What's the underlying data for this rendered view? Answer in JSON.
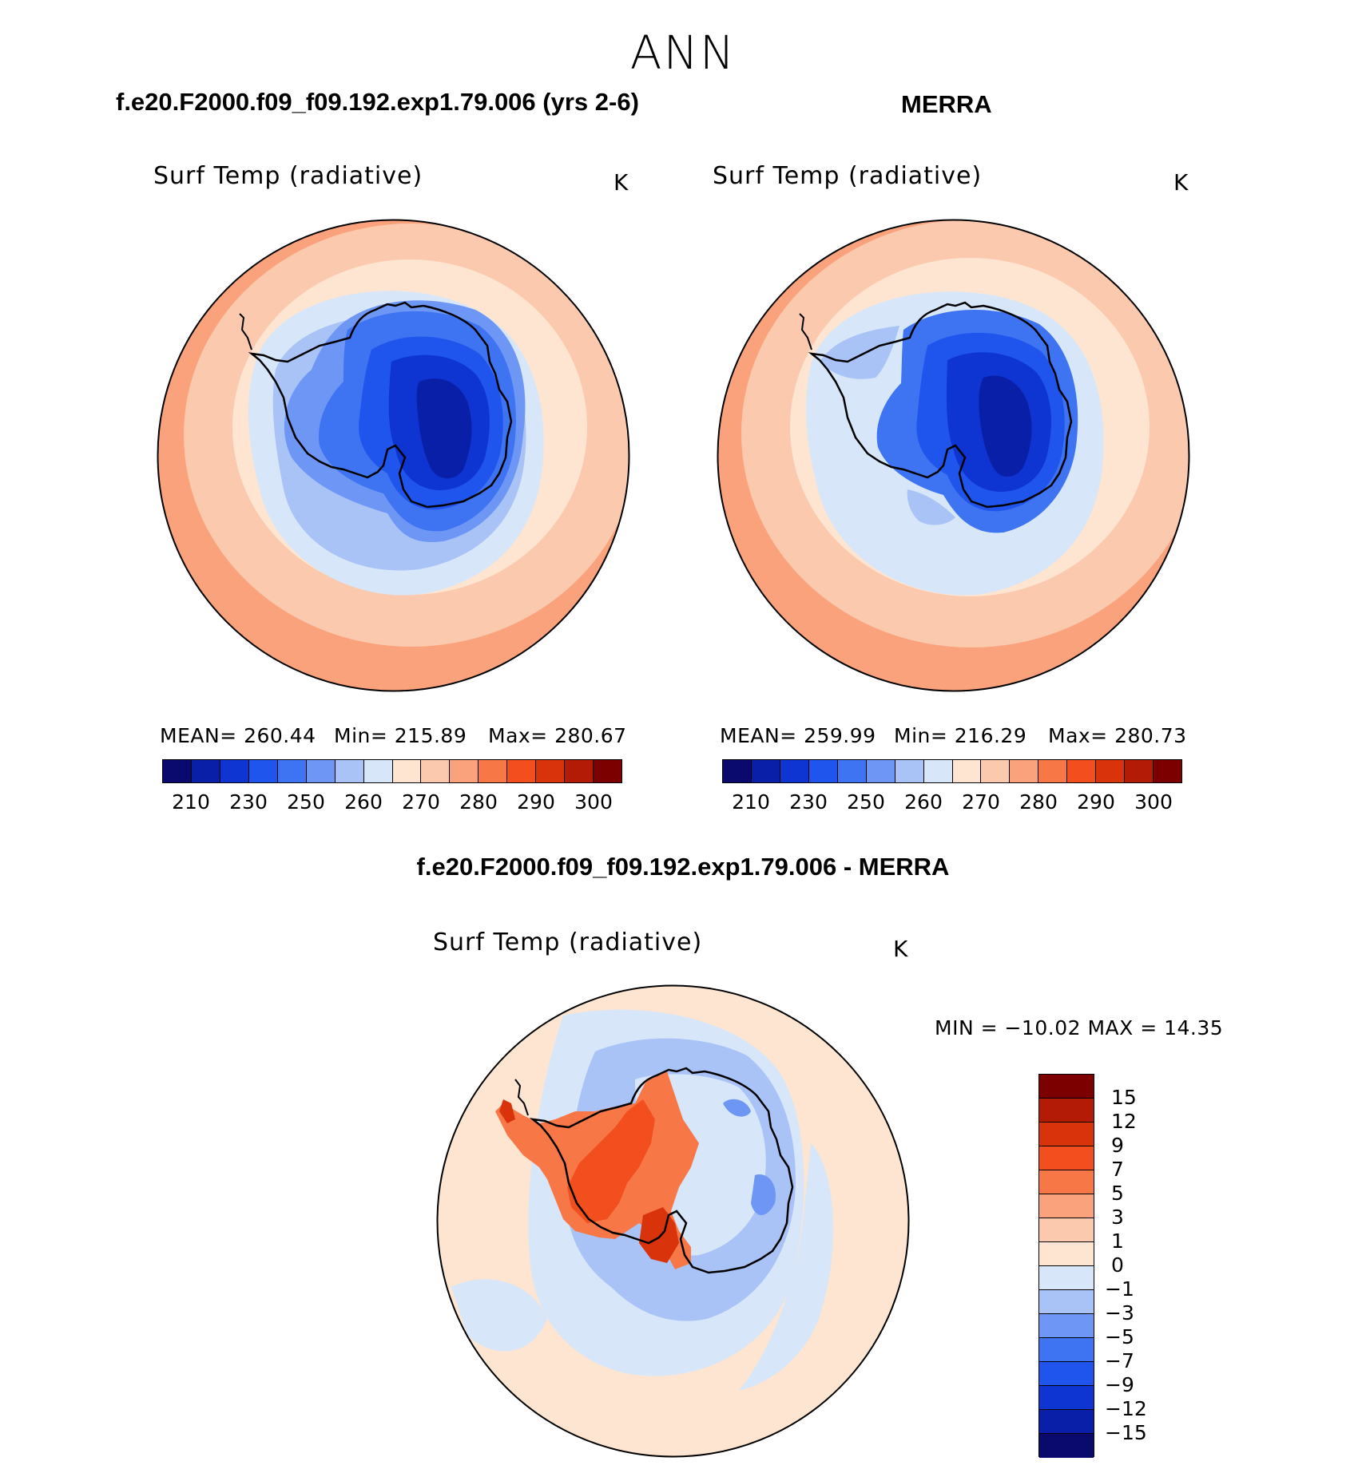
{
  "season": "ANN",
  "panel1": {
    "case_title": "f.e20.F2000.f09_f09.192.exp1.79.006 (yrs 2-6)",
    "variable": "Surf Temp (radiative)",
    "units": "K",
    "stats": {
      "mean": "MEAN= 260.44",
      "min": "Min= 215.89",
      "max": "Max= 280.67"
    }
  },
  "panel2": {
    "case_title": "MERRA",
    "variable": "Surf Temp (radiative)",
    "units": "K",
    "stats": {
      "mean": "MEAN= 259.99",
      "min": "Min= 216.29",
      "max": "Max= 280.73"
    }
  },
  "panel3": {
    "case_title": "f.e20.F2000.f09_f09.192.exp1.79.006 - MERRA",
    "variable": "Surf Temp (radiative)",
    "units": "K",
    "stats": {
      "minmax": "MIN = −10.02 MAX =   14.35"
    }
  },
  "abs_colorbar": {
    "colors": [
      "#0a0a6e",
      "#0a1fa8",
      "#0e34d2",
      "#1f55ed",
      "#3e73f2",
      "#6d96f5",
      "#a9c3f7",
      "#d7e6f9",
      "#fde5d2",
      "#fbc9ae",
      "#f9a27c",
      "#f77746",
      "#f24e1e",
      "#d9330c",
      "#b31b06",
      "#7d0000"
    ],
    "ticks": [
      "210",
      "230",
      "250",
      "260",
      "270",
      "280",
      "290",
      "300"
    ]
  },
  "diff_colorbar": {
    "colors": [
      "#7d0000",
      "#b31b06",
      "#d9330c",
      "#f24e1e",
      "#f77746",
      "#f9a27c",
      "#fbc9ae",
      "#fde5d2",
      "#d7e6f9",
      "#a9c3f7",
      "#6d96f5",
      "#3e73f2",
      "#1f55ed",
      "#0e34d2",
      "#0a1fa8",
      "#0a0a6e"
    ],
    "ticks": [
      "15",
      "12",
      "9",
      "7",
      "5",
      "3",
      "1",
      "0",
      "−1",
      "−3",
      "−5",
      "−7",
      "−9",
      "−12",
      "−15"
    ]
  }
}
